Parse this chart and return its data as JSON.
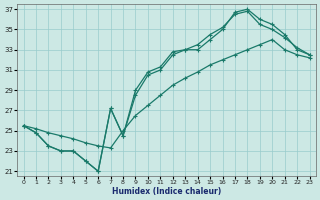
{
  "background_color": "#cce8e4",
  "grid_color": "#99cccc",
  "line_color": "#1a7a6a",
  "xlim": [
    -0.5,
    23.5
  ],
  "ylim": [
    20.5,
    37.5
  ],
  "xticks": [
    0,
    1,
    2,
    3,
    4,
    5,
    6,
    7,
    8,
    9,
    10,
    11,
    12,
    13,
    14,
    15,
    16,
    17,
    18,
    19,
    20,
    21,
    22,
    23
  ],
  "yticks": [
    21,
    23,
    25,
    27,
    29,
    31,
    33,
    35,
    37
  ],
  "xlabel": "Humidex (Indice chaleur)",
  "line1_x": [
    0,
    1,
    2,
    3,
    4,
    5,
    6,
    7,
    8,
    9,
    10,
    11,
    12,
    13,
    14,
    15,
    16,
    17,
    18,
    19,
    20,
    21,
    22,
    23
  ],
  "line1_y": [
    25.5,
    24.8,
    23.5,
    23.0,
    23.0,
    22.0,
    21.0,
    27.2,
    24.5,
    29.0,
    30.8,
    31.3,
    32.8,
    33.0,
    33.5,
    34.5,
    35.2,
    36.5,
    36.8,
    35.5,
    35.0,
    34.2,
    33.2,
    32.5
  ],
  "line2_x": [
    0,
    1,
    2,
    3,
    4,
    5,
    6,
    7,
    8,
    9,
    10,
    11,
    12,
    13,
    14,
    15,
    16,
    17,
    18,
    19,
    20,
    21,
    22,
    23
  ],
  "line2_y": [
    25.5,
    24.8,
    23.5,
    23.0,
    23.0,
    22.0,
    21.0,
    27.2,
    24.5,
    28.5,
    30.5,
    31.0,
    32.5,
    33.0,
    33.0,
    34.0,
    35.0,
    36.7,
    37.0,
    36.0,
    35.5,
    34.5,
    33.0,
    32.5
  ],
  "line3_x": [
    0,
    1,
    2,
    3,
    4,
    5,
    6,
    7,
    8,
    9,
    10,
    11,
    12,
    13,
    14,
    15,
    16,
    17,
    18,
    19,
    20,
    21,
    22,
    23
  ],
  "line3_y": [
    25.5,
    25.2,
    24.8,
    24.5,
    24.2,
    23.8,
    23.5,
    23.3,
    25.0,
    26.5,
    27.5,
    28.5,
    29.5,
    30.2,
    30.8,
    31.5,
    32.0,
    32.5,
    33.0,
    33.5,
    34.0,
    33.0,
    32.5,
    32.2
  ]
}
